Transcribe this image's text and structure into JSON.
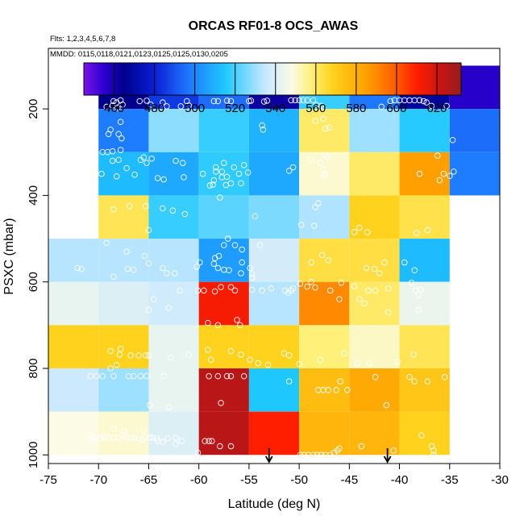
{
  "chart_data": {
    "type": "heatmap",
    "title": "ORCAS RF01-8 OCS_AWAS",
    "flights_label": "Flts: 1,2,3,4,5,6,7,8",
    "dates_label": "MMDD: 0115,0118,0121,0123,0125,0125,0130,0205",
    "xlabel": "Latitude (deg N)",
    "ylabel": "PSXC (mbar)",
    "xlim": [
      -75,
      -30
    ],
    "ylim": [
      1020,
      60
    ],
    "x_ticks": [
      -75,
      -70,
      -65,
      -60,
      -55,
      -50,
      -45,
      -40,
      -35,
      -30
    ],
    "y_ticks": [
      200,
      400,
      600,
      800,
      1000
    ],
    "colorbar": {
      "min": 445,
      "max": 632,
      "ticks": [
        460,
        480,
        500,
        520,
        540,
        560,
        580,
        600,
        620
      ],
      "stops": [
        [
          445,
          "#7a14e8"
        ],
        [
          455,
          "#2b00d0"
        ],
        [
          465,
          "#00008c"
        ],
        [
          480,
          "#0a1ed6"
        ],
        [
          497,
          "#1e78ff"
        ],
        [
          515,
          "#1ec8ff"
        ],
        [
          535,
          "#c8e8ff"
        ],
        [
          548,
          "#fbfbe6"
        ],
        [
          558,
          "#fff07a"
        ],
        [
          568,
          "#ffd21e"
        ],
        [
          585,
          "#ffa000"
        ],
        [
          600,
          "#ff5a00"
        ],
        [
          610,
          "#ff1e00"
        ],
        [
          622,
          "#c81414"
        ],
        [
          632,
          "#961e1e"
        ]
      ]
    },
    "x_bins": [
      -70,
      -65,
      -60,
      -55,
      -50,
      -45,
      -40,
      -35
    ],
    "p_bins": [
      100,
      200,
      300,
      400,
      500,
      600,
      700,
      800,
      900,
      1000
    ],
    "cells": [
      [
        -70,
        100,
        465
      ],
      [
        -65,
        100,
        485
      ],
      [
        -60,
        100,
        495
      ],
      [
        -55,
        100,
        462
      ],
      [
        -50,
        100,
        518
      ],
      [
        -45,
        100,
        497
      ],
      [
        -40,
        100,
        468
      ],
      [
        -35,
        100,
        456
      ],
      [
        -70,
        200,
        498
      ],
      [
        -65,
        200,
        528
      ],
      [
        -60,
        200,
        518
      ],
      [
        -55,
        200,
        510
      ],
      [
        -50,
        200,
        560
      ],
      [
        -45,
        200,
        530
      ],
      [
        -40,
        200,
        516
      ],
      [
        -35,
        200,
        495
      ],
      [
        -70,
        300,
        512
      ],
      [
        -65,
        300,
        508
      ],
      [
        -60,
        300,
        517
      ],
      [
        -55,
        300,
        508
      ],
      [
        -50,
        300,
        550
      ],
      [
        -45,
        300,
        560
      ],
      [
        -40,
        300,
        585
      ],
      [
        -35,
        300,
        498
      ],
      [
        -70,
        400,
        562
      ],
      [
        -65,
        400,
        518
      ],
      [
        -60,
        400,
        522
      ],
      [
        -55,
        400,
        526
      ],
      [
        -50,
        400,
        532
      ],
      [
        -45,
        400,
        568
      ],
      [
        -40,
        400,
        563
      ],
      [
        -75,
        500,
        533
      ],
      [
        -70,
        500,
        533
      ],
      [
        -65,
        500,
        533
      ],
      [
        -60,
        500,
        505
      ],
      [
        -55,
        500,
        538
      ],
      [
        -50,
        500,
        564
      ],
      [
        -45,
        500,
        564
      ],
      [
        -40,
        500,
        512
      ],
      [
        -75,
        600,
        543
      ],
      [
        -70,
        600,
        540
      ],
      [
        -65,
        600,
        537
      ],
      [
        -60,
        600,
        612
      ],
      [
        -55,
        600,
        533
      ],
      [
        -50,
        600,
        590
      ],
      [
        -45,
        600,
        560
      ],
      [
        -40,
        600,
        544
      ],
      [
        -75,
        700,
        568
      ],
      [
        -70,
        700,
        568
      ],
      [
        -65,
        700,
        543
      ],
      [
        -60,
        700,
        568
      ],
      [
        -55,
        700,
        568
      ],
      [
        -50,
        700,
        558
      ],
      [
        -45,
        700,
        551
      ],
      [
        -40,
        700,
        562
      ],
      [
        -75,
        800,
        536
      ],
      [
        -70,
        800,
        530
      ],
      [
        -65,
        800,
        543
      ],
      [
        -60,
        800,
        625
      ],
      [
        -55,
        800,
        515
      ],
      [
        -50,
        800,
        575
      ],
      [
        -45,
        800,
        582
      ],
      [
        -40,
        800,
        572
      ],
      [
        -75,
        900,
        548
      ],
      [
        -70,
        900,
        550
      ],
      [
        -65,
        900,
        540
      ],
      [
        -60,
        900,
        625
      ],
      [
        -55,
        900,
        610
      ],
      [
        -50,
        900,
        578
      ],
      [
        -45,
        900,
        578
      ],
      [
        -40,
        900,
        568
      ]
    ],
    "points": [
      [
        -68.5,
        182
      ],
      [
        -68.2,
        185
      ],
      [
        -67.8,
        180
      ],
      [
        -68.6,
        192
      ],
      [
        -67.6,
        190
      ],
      [
        -69.2,
        195
      ],
      [
        -68.1,
        198
      ],
      [
        -65.9,
        182
      ],
      [
        -65.2,
        181
      ],
      [
        -64.8,
        190
      ],
      [
        -63.6,
        185
      ],
      [
        -63.2,
        194
      ],
      [
        -61.8,
        194
      ],
      [
        -61.2,
        182
      ],
      [
        -61.0,
        192
      ],
      [
        -58.5,
        182
      ],
      [
        -58.1,
        182
      ],
      [
        -57.2,
        181
      ],
      [
        -56.8,
        182
      ],
      [
        -55.0,
        182
      ],
      [
        -54.8,
        181
      ],
      [
        -53.5,
        183
      ],
      [
        -53.2,
        181
      ],
      [
        -50.8,
        180
      ],
      [
        -50.4,
        180
      ],
      [
        -50.0,
        180
      ],
      [
        -49.6,
        180
      ],
      [
        -49.2,
        180
      ],
      [
        -48.6,
        180
      ],
      [
        -48.3,
        191
      ],
      [
        -47.8,
        193
      ],
      [
        -47.6,
        200
      ],
      [
        -41.8,
        195
      ],
      [
        -40.9,
        182
      ],
      [
        -40.5,
        180
      ],
      [
        -40.0,
        180
      ],
      [
        -39.5,
        180
      ],
      [
        -39.0,
        180
      ],
      [
        -38.5,
        180
      ],
      [
        -38.0,
        180
      ],
      [
        -37.6,
        182
      ],
      [
        -37.3,
        185
      ],
      [
        -36.8,
        193
      ],
      [
        -35.3,
        193
      ],
      [
        -67.8,
        230
      ],
      [
        -68.8,
        248
      ],
      [
        -68.0,
        258
      ],
      [
        -69.0,
        258
      ],
      [
        -67.7,
        268
      ],
      [
        -69.6,
        300
      ],
      [
        -69.1,
        300
      ],
      [
        -68.6,
        298
      ],
      [
        -67.8,
        295
      ],
      [
        -47.6,
        223
      ],
      [
        -47.4,
        246
      ],
      [
        -47.0,
        243
      ],
      [
        -53.7,
        238
      ],
      [
        -53.6,
        248
      ],
      [
        -48.4,
        228
      ],
      [
        -34.7,
        272
      ],
      [
        -68.0,
        318
      ],
      [
        -68.6,
        320
      ],
      [
        -67.2,
        337
      ],
      [
        -68.2,
        356
      ],
      [
        -66.4,
        352
      ],
      [
        -69.7,
        350
      ],
      [
        -65.8,
        318
      ],
      [
        -65.5,
        312
      ],
      [
        -65.2,
        325
      ],
      [
        -64.7,
        315
      ],
      [
        -62.3,
        320
      ],
      [
        -61.6,
        325
      ],
      [
        -61.5,
        358
      ],
      [
        -59.6,
        350
      ],
      [
        -58.3,
        345
      ],
      [
        -57.7,
        345
      ],
      [
        -58.5,
        365
      ],
      [
        -57.7,
        358
      ],
      [
        -57.2,
        357
      ],
      [
        -58.3,
        335
      ],
      [
        -57.5,
        325
      ],
      [
        -56.5,
        335
      ],
      [
        -56.0,
        350
      ],
      [
        -55.8,
        372
      ],
      [
        -55.1,
        347
      ],
      [
        -55.5,
        330
      ],
      [
        -56.8,
        372
      ],
      [
        -51.0,
        343
      ],
      [
        -50.6,
        335
      ],
      [
        -47.4,
        307
      ],
      [
        -47.2,
        312
      ],
      [
        -48.8,
        318
      ],
      [
        -47.9,
        325
      ],
      [
        -47.6,
        340
      ],
      [
        -47.5,
        350
      ],
      [
        -47.4,
        355
      ],
      [
        -38.0,
        350
      ],
      [
        -35.6,
        350
      ],
      [
        -35.0,
        355
      ],
      [
        -34.6,
        345
      ],
      [
        -36.0,
        365
      ],
      [
        -36.2,
        308
      ],
      [
        -57.9,
        405
      ],
      [
        -58.9,
        377
      ],
      [
        -58.6,
        375
      ],
      [
        -57.3,
        376
      ],
      [
        -64.1,
        360
      ],
      [
        -63.5,
        363
      ],
      [
        -66.9,
        425
      ],
      [
        -65.3,
        425
      ],
      [
        -68.5,
        432
      ],
      [
        -63.6,
        430
      ],
      [
        -62.6,
        435
      ],
      [
        -61.4,
        443
      ],
      [
        -65.0,
        480
      ],
      [
        -54.4,
        448
      ],
      [
        -57.1,
        500
      ],
      [
        -48.1,
        418
      ],
      [
        -48.4,
        427
      ],
      [
        -48.5,
        470
      ],
      [
        -49.8,
        468
      ],
      [
        -44.0,
        475
      ],
      [
        -44.5,
        485
      ],
      [
        -43.2,
        485
      ],
      [
        -38.3,
        487
      ],
      [
        -37.2,
        480
      ],
      [
        -72.1,
        568
      ],
      [
        -71.7,
        570
      ],
      [
        -68.5,
        588
      ],
      [
        -67.1,
        570
      ],
      [
        -66.5,
        572
      ],
      [
        -65.0,
        557
      ],
      [
        -63.6,
        568
      ],
      [
        -62.4,
        580
      ],
      [
        -60.2,
        565
      ],
      [
        -59.9,
        555
      ],
      [
        -58.5,
        558
      ],
      [
        -58.0,
        540
      ],
      [
        -58.1,
        568
      ],
      [
        -57.5,
        572
      ],
      [
        -57.0,
        573
      ],
      [
        -55.7,
        555
      ],
      [
        -54.9,
        568
      ],
      [
        -54.7,
        582
      ],
      [
        -55.8,
        580
      ],
      [
        -54.7,
        590
      ],
      [
        -58.4,
        545
      ],
      [
        -56.4,
        515
      ],
      [
        -55.7,
        525
      ],
      [
        -57.5,
        515
      ],
      [
        -53.9,
        515
      ],
      [
        -47.7,
        538
      ],
      [
        -47.1,
        550
      ],
      [
        -48.8,
        555
      ],
      [
        -43.3,
        568
      ],
      [
        -42.5,
        570
      ],
      [
        -42.0,
        580
      ],
      [
        -39.5,
        555
      ],
      [
        -41.5,
        555
      ],
      [
        -38.5,
        573
      ],
      [
        -67.2,
        530
      ],
      [
        -69.2,
        510
      ],
      [
        -65.4,
        540
      ],
      [
        -63.2,
        580
      ],
      [
        -61.9,
        620
      ],
      [
        -59.5,
        620
      ],
      [
        -60.1,
        620
      ],
      [
        -58.4,
        622
      ],
      [
        -57.8,
        612
      ],
      [
        -56.4,
        620
      ],
      [
        -56.8,
        612
      ],
      [
        -54.7,
        618
      ],
      [
        -53.7,
        620
      ],
      [
        -52.8,
        615
      ],
      [
        -51.4,
        620
      ],
      [
        -51.1,
        625
      ],
      [
        -50.6,
        615
      ],
      [
        -50.8,
        620
      ],
      [
        -49.9,
        604
      ],
      [
        -48.8,
        600
      ],
      [
        -49.2,
        611
      ],
      [
        -48.4,
        613
      ],
      [
        -46.9,
        620
      ],
      [
        -45.8,
        602
      ],
      [
        -44.5,
        610
      ],
      [
        -43.1,
        620
      ],
      [
        -42.4,
        620
      ],
      [
        -41.1,
        615
      ],
      [
        -38.8,
        602
      ],
      [
        -38.4,
        620
      ],
      [
        -37.9,
        618
      ],
      [
        -38.1,
        630
      ],
      [
        -64.5,
        640
      ],
      [
        -63.0,
        660
      ],
      [
        -65.0,
        665
      ],
      [
        -59.1,
        695
      ],
      [
        -58.1,
        700
      ],
      [
        -56.2,
        688
      ],
      [
        -55.9,
        700
      ],
      [
        -46.0,
        640
      ],
      [
        -41.1,
        670
      ],
      [
        -38.1,
        665
      ],
      [
        -44.0,
        640
      ],
      [
        -43.5,
        650
      ],
      [
        -67.8,
        755
      ],
      [
        -68.8,
        760
      ],
      [
        -67.9,
        768
      ],
      [
        -66.8,
        770
      ],
      [
        -65.0,
        770
      ],
      [
        -68.2,
        792
      ],
      [
        -68.8,
        800
      ],
      [
        -66.0,
        770
      ],
      [
        -65.3,
        770
      ],
      [
        -62.8,
        775
      ],
      [
        -61.0,
        768
      ],
      [
        -59.1,
        757
      ],
      [
        -58.8,
        780
      ],
      [
        -56.8,
        760
      ],
      [
        -55.8,
        768
      ],
      [
        -54.9,
        780
      ],
      [
        -54.1,
        788
      ],
      [
        -53.1,
        792
      ],
      [
        -51.5,
        765
      ],
      [
        -51.0,
        770
      ],
      [
        -50.0,
        790
      ],
      [
        -47.9,
        780
      ],
      [
        -45.5,
        765
      ],
      [
        -44.2,
        788
      ],
      [
        -43.0,
        788
      ],
      [
        -40.2,
        785
      ],
      [
        -38.6,
        768
      ],
      [
        -70.8,
        818
      ],
      [
        -70.2,
        818
      ],
      [
        -69.6,
        818
      ],
      [
        -68.5,
        818
      ],
      [
        -67.0,
        818
      ],
      [
        -66.5,
        818
      ],
      [
        -65.8,
        818
      ],
      [
        -65.2,
        818
      ],
      [
        -63.5,
        818
      ],
      [
        -59.0,
        818
      ],
      [
        -58.1,
        818
      ],
      [
        -57.2,
        818
      ],
      [
        -56.8,
        818
      ],
      [
        -55.5,
        818
      ],
      [
        -51.0,
        830
      ],
      [
        -48.1,
        850
      ],
      [
        -47.6,
        850
      ],
      [
        -47.1,
        850
      ],
      [
        -46.3,
        850
      ],
      [
        -45.9,
        830
      ],
      [
        -45.2,
        850
      ],
      [
        -42.4,
        820
      ],
      [
        -39.0,
        820
      ],
      [
        -38.5,
        830
      ],
      [
        -37.2,
        830
      ],
      [
        -35.5,
        820
      ],
      [
        -64.9,
        885
      ],
      [
        -63.0,
        890
      ],
      [
        -57.8,
        880
      ],
      [
        -41.3,
        885
      ],
      [
        -70.8,
        955
      ],
      [
        -70.6,
        960
      ],
      [
        -70.3,
        960
      ],
      [
        -69.8,
        962
      ],
      [
        -69.4,
        960
      ],
      [
        -69.0,
        960
      ],
      [
        -68.5,
        960
      ],
      [
        -68.0,
        960
      ],
      [
        -67.6,
        955
      ],
      [
        -67.2,
        960
      ],
      [
        -66.8,
        960
      ],
      [
        -66.4,
        960
      ],
      [
        -66.0,
        962
      ],
      [
        -65.6,
        965
      ],
      [
        -65.3,
        960
      ],
      [
        -64.9,
        960
      ],
      [
        -64.6,
        960
      ],
      [
        -64.2,
        962
      ],
      [
        -63.6,
        970
      ],
      [
        -63.1,
        962
      ],
      [
        -62.3,
        960
      ],
      [
        -61.7,
        968
      ],
      [
        -59.4,
        968
      ],
      [
        -59.0,
        968
      ],
      [
        -58.7,
        968
      ],
      [
        -57.9,
        980
      ],
      [
        -56.8,
        980
      ],
      [
        -49.9,
        1000
      ],
      [
        -49.5,
        1000
      ],
      [
        -49.1,
        1000
      ],
      [
        -48.6,
        1000
      ],
      [
        -48.2,
        1000
      ],
      [
        -47.8,
        1000
      ],
      [
        -47.4,
        1000
      ],
      [
        -46.9,
        1000
      ],
      [
        -46.5,
        995
      ],
      [
        -46.2,
        990
      ],
      [
        -46.0,
        985
      ],
      [
        -43.8,
        980
      ],
      [
        -40.6,
        990
      ],
      [
        -37.8,
        955
      ],
      [
        -36.8,
        980
      ],
      [
        -36.6,
        990
      ],
      [
        -36.6,
        1000
      ],
      [
        -64.1,
        968
      ],
      [
        -62.3,
        975
      ],
      [
        -60.1,
        995
      ],
      [
        -67.4,
        945
      ],
      [
        -68.5,
        940
      ],
      [
        -69.5,
        955
      ],
      [
        -65.5,
        945
      ]
    ],
    "arrows": [
      -53,
      -41.2
    ]
  }
}
